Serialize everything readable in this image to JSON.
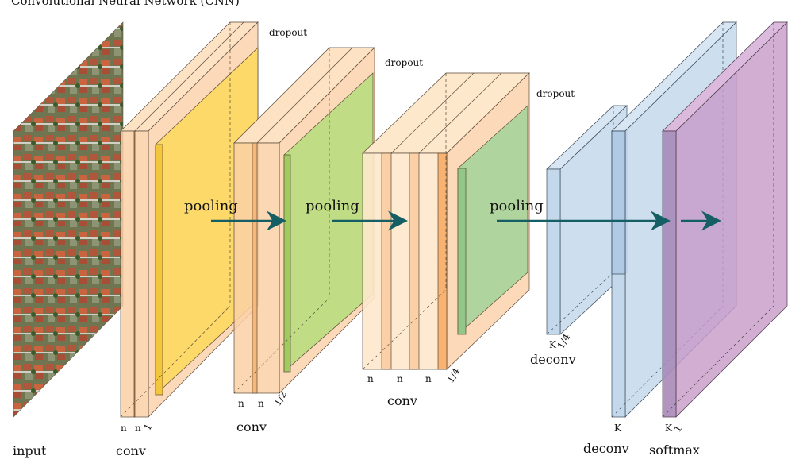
{
  "header": {
    "title": "Convolutional Neural Network (CNN)"
  },
  "labels": {
    "input": "input",
    "conv1": "conv",
    "conv2": "conv",
    "conv3": "conv",
    "deconv1": "deconv",
    "deconv2": "deconv",
    "softmax": "softmax",
    "pooling1": "pooling",
    "pooling2": "pooling",
    "pooling3": "pooling",
    "dropout1": "dropout",
    "dropout2": "dropout",
    "dropout3": "dropout"
  },
  "dims": {
    "b1": [
      "n",
      "n",
      "1"
    ],
    "b2": [
      "n",
      "n",
      "1/2"
    ],
    "b3": [
      "n",
      "n",
      "n",
      "1/4"
    ],
    "d1": [
      "K",
      "1/4"
    ],
    "d2": "K",
    "sm": [
      "K",
      "1"
    ]
  },
  "colors": {
    "conv_orange": "#fbd0a6",
    "conv_light": "#fde8cc",
    "conv_accent": "#f6a45a",
    "yellow": "#fbd85a",
    "green1": "#b9dc7e",
    "green2": "#a6d39a",
    "deconv_blue": "#c4d8ec",
    "softmax_purple": "#c79ac8",
    "arrow": "#155e63"
  }
}
